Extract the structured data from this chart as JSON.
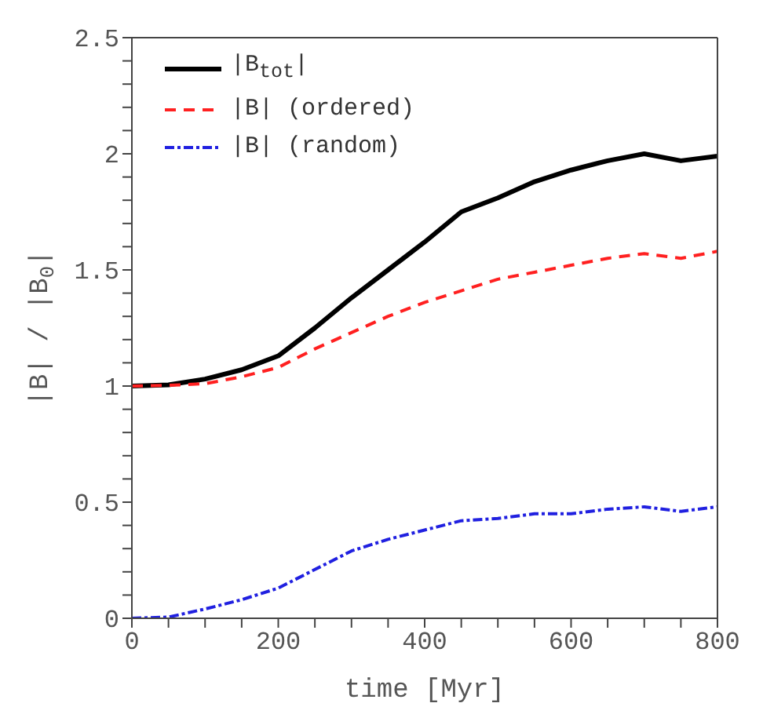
{
  "chart_data": {
    "type": "line",
    "xlabel": "time [Myr]",
    "ylabel": "|B| / |B$_{0}$|",
    "x": [
      0,
      50,
      100,
      150,
      200,
      250,
      300,
      350,
      400,
      450,
      500,
      550,
      600,
      650,
      700,
      750,
      800
    ],
    "series": [
      {
        "name": "|B$_{tot}$|",
        "color": "#000000",
        "line_style": "solid",
        "values": [
          1,
          1.005,
          1.03,
          1.07,
          1.13,
          1.25,
          1.38,
          1.5,
          1.62,
          1.75,
          1.81,
          1.88,
          1.93,
          1.97,
          2.0,
          1.97,
          1.99
        ]
      },
      {
        "name": "|B| (ordered)",
        "color": "#ff2020",
        "line_style": "dashed",
        "values": [
          1,
          1.003,
          1.01,
          1.04,
          1.08,
          1.16,
          1.23,
          1.3,
          1.36,
          1.41,
          1.46,
          1.49,
          1.52,
          1.55,
          1.57,
          1.55,
          1.58
        ]
      },
      {
        "name": "|B| (random)",
        "color": "#2020e0",
        "line_style": "dotted",
        "values": [
          0,
          0.005,
          0.04,
          0.08,
          0.13,
          0.21,
          0.29,
          0.34,
          0.38,
          0.42,
          0.43,
          0.45,
          0.45,
          0.47,
          0.48,
          0.46,
          0.48
        ]
      }
    ],
    "xlim": [
      0,
      800
    ],
    "xticks": [
      0,
      {
        "value": 50,
        "label": null
      },
      {
        "value": 100,
        "label": null
      },
      {
        "value": 150,
        "label": null
      },
      200,
      {
        "value": 250,
        "label": null
      },
      {
        "value": 300,
        "label": null
      },
      {
        "value": 350,
        "label": null
      },
      400,
      {
        "value": 450,
        "label": null
      },
      {
        "value": 500,
        "label": null
      },
      {
        "value": 550,
        "label": null
      },
      600,
      {
        "value": 650,
        "label": null
      },
      {
        "value": 700,
        "label": null
      },
      {
        "value": 750,
        "label": null
      },
      800
    ],
    "ylim": [
      0,
      2.5
    ],
    "yticks": [
      0,
      {
        "value": 0.1,
        "label": null
      },
      {
        "value": 0.2,
        "label": null
      },
      {
        "value": 0.3,
        "label": null
      },
      {
        "value": 0.4,
        "label": null
      },
      0.5,
      {
        "value": 0.6,
        "label": null
      },
      {
        "value": 0.7,
        "label": null
      },
      {
        "value": 0.8,
        "label": null
      },
      {
        "value": 0.9,
        "label": null
      },
      1,
      {
        "value": 1.1,
        "label": null
      },
      {
        "value": 1.2,
        "label": null
      },
      {
        "value": 1.3,
        "label": null
      },
      {
        "value": 1.4,
        "label": null
      },
      1.5,
      {
        "value": 1.6,
        "label": null
      },
      {
        "value": 1.7,
        "label": null
      },
      {
        "value": 1.8,
        "label": null
      },
      {
        "value": 1.9,
        "label": null
      },
      2,
      {
        "value": 2.1,
        "label": null
      },
      {
        "value": 2.2,
        "label": null
      },
      {
        "value": 2.3,
        "label": null
      },
      {
        "value": 2.4,
        "label": null
      },
      2.5
    ],
    "grid": false,
    "legend": "top left",
    "marker": "none"
  }
}
